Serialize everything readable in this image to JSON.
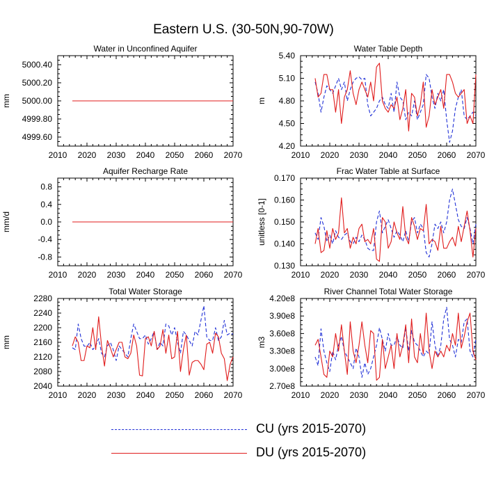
{
  "figure": {
    "title": "Eastern U.S. (30-50N,90-70W)",
    "colors": {
      "CU": "#1f2fd6",
      "DU": "#e01b1b"
    }
  },
  "legend": {
    "entries": [
      {
        "label": "CU (yrs 2015-2070)",
        "series": "CU",
        "style": "dashed"
      },
      {
        "label": "DU (yrs 2015-2070)",
        "series": "DU",
        "style": "solid"
      }
    ]
  },
  "chart_data": [
    {
      "type": "line",
      "title": "Water in Unconfined Aquifer",
      "ylabel": "mm",
      "xlim": [
        2010,
        2070
      ],
      "ylim": [
        4999.5,
        5000.5
      ],
      "xticks": [
        2010,
        2020,
        2030,
        2040,
        2050,
        2060,
        2070
      ],
      "yticks": [
        4999.6,
        4999.8,
        5000.0,
        5000.2,
        5000.4
      ],
      "ytick_labels": [
        "4999.60",
        "4999.80",
        "5000.00",
        "5000.20",
        "5000.40"
      ],
      "x_start": 2015,
      "series": [
        {
          "name": "CU (yrs 2015-2070)",
          "key": "CU",
          "style": "dashed",
          "values": [
            5000.0,
            5000.0,
            5000.0,
            5000.0,
            5000.0,
            5000.0,
            5000.0,
            5000.0,
            5000.0,
            5000.0,
            5000.0,
            5000.0,
            5000.0,
            5000.0,
            5000.0,
            5000.0,
            5000.0,
            5000.0,
            5000.0,
            5000.0,
            5000.0,
            5000.0,
            5000.0,
            5000.0,
            5000.0,
            5000.0,
            5000.0,
            5000.0,
            5000.0,
            5000.0,
            5000.0,
            5000.0,
            5000.0,
            5000.0,
            5000.0,
            5000.0,
            5000.0,
            5000.0,
            5000.0,
            5000.0,
            5000.0,
            5000.0,
            5000.0,
            5000.0,
            5000.0,
            5000.0,
            5000.0,
            5000.0,
            5000.0,
            5000.0,
            5000.0,
            5000.0,
            5000.0,
            5000.0,
            5000.0,
            5000.0
          ]
        },
        {
          "name": "DU (yrs 2015-2070)",
          "key": "DU",
          "style": "solid",
          "values": [
            5000.0,
            5000.0,
            5000.0,
            5000.0,
            5000.0,
            5000.0,
            5000.0,
            5000.0,
            5000.0,
            5000.0,
            5000.0,
            5000.0,
            5000.0,
            5000.0,
            5000.0,
            5000.0,
            5000.0,
            5000.0,
            5000.0,
            5000.0,
            5000.0,
            5000.0,
            5000.0,
            5000.0,
            5000.0,
            5000.0,
            5000.0,
            5000.0,
            5000.0,
            5000.0,
            5000.0,
            5000.0,
            5000.0,
            5000.0,
            5000.0,
            5000.0,
            5000.0,
            5000.0,
            5000.0,
            5000.0,
            5000.0,
            5000.0,
            5000.0,
            5000.0,
            5000.0,
            5000.0,
            5000.0,
            5000.0,
            5000.0,
            5000.0,
            5000.0,
            5000.0,
            5000.0,
            5000.0,
            5000.0,
            5000.0
          ]
        }
      ]
    },
    {
      "type": "line",
      "title": "Water Table Depth",
      "ylabel": "m",
      "xlim": [
        2010,
        2070
      ],
      "ylim": [
        4.2,
        5.4
      ],
      "xticks": [
        2010,
        2020,
        2030,
        2040,
        2050,
        2060,
        2070
      ],
      "yticks": [
        4.2,
        4.5,
        4.8,
        5.1,
        5.4
      ],
      "ytick_labels": [
        "4.20",
        "4.50",
        "4.80",
        "5.10",
        "5.40"
      ],
      "x_start": 2015,
      "series": [
        {
          "name": "CU (yrs 2015-2070)",
          "key": "CU",
          "style": "dashed",
          "values": [
            5.05,
            4.9,
            4.65,
            4.85,
            5.0,
            4.95,
            4.9,
            5.0,
            5.1,
            4.95,
            5.05,
            4.8,
            4.95,
            5.05,
            5.1,
            5.12,
            5.08,
            5.1,
            4.75,
            4.6,
            4.65,
            4.7,
            4.8,
            4.85,
            4.75,
            4.7,
            4.9,
            4.65,
            5.05,
            4.85,
            4.8,
            4.55,
            4.65,
            4.6,
            4.8,
            4.55,
            4.65,
            4.75,
            5.15,
            5.1,
            4.85,
            4.7,
            4.9,
            4.8,
            4.95,
            4.55,
            4.25,
            4.4,
            4.7,
            4.85,
            4.95,
            4.6,
            4.55,
            4.6,
            4.65,
            4.6
          ]
        },
        {
          "name": "DU (yrs 2015-2070)",
          "key": "DU",
          "style": "solid",
          "values": [
            5.1,
            4.85,
            4.9,
            5.15,
            5.15,
            4.95,
            4.95,
            4.65,
            4.95,
            4.5,
            4.85,
            4.95,
            5.2,
            4.9,
            4.75,
            4.95,
            5.05,
            4.95,
            4.85,
            5.05,
            4.8,
            5.25,
            5.3,
            4.8,
            4.7,
            4.65,
            4.75,
            4.7,
            4.85,
            4.55,
            4.7,
            4.95,
            4.4,
            4.9,
            4.85,
            4.6,
            4.75,
            5.05,
            4.45,
            4.6,
            4.95,
            4.75,
            4.85,
            4.95,
            4.7,
            5.15,
            5.15,
            5.05,
            4.9,
            4.85,
            4.9,
            4.95,
            4.5,
            4.6,
            4.5,
            5.15
          ]
        }
      ]
    },
    {
      "type": "line",
      "title": "Aquifer Recharge Rate",
      "ylabel": "mm/d",
      "xlim": [
        2010,
        2070
      ],
      "ylim": [
        -1.0,
        1.0
      ],
      "xticks": [
        2010,
        2020,
        2030,
        2040,
        2050,
        2060,
        2070
      ],
      "yticks": [
        -0.8,
        -0.4,
        0.0,
        0.4,
        0.8
      ],
      "ytick_labels": [
        "-0.8",
        "-0.4",
        "0.0",
        "0.4",
        "0.8"
      ],
      "x_start": 2015,
      "series": [
        {
          "name": "CU (yrs 2015-2070)",
          "key": "CU",
          "style": "dashed",
          "values": [
            0,
            0,
            0,
            0,
            0,
            0,
            0,
            0,
            0,
            0,
            0,
            0,
            0,
            0,
            0,
            0,
            0,
            0,
            0,
            0,
            0,
            0,
            0,
            0,
            0,
            0,
            0,
            0,
            0,
            0,
            0,
            0,
            0,
            0,
            0,
            0,
            0,
            0,
            0,
            0,
            0,
            0,
            0,
            0,
            0,
            0,
            0,
            0,
            0,
            0,
            0,
            0,
            0,
            0,
            0,
            0
          ]
        },
        {
          "name": "DU (yrs 2015-2070)",
          "key": "DU",
          "style": "solid",
          "values": [
            0,
            0,
            0,
            0,
            0,
            0,
            0,
            0,
            0,
            0,
            0,
            0,
            0,
            0,
            0,
            0,
            0,
            0,
            0,
            0,
            0,
            0,
            0,
            0,
            0,
            0,
            0,
            0,
            0,
            0,
            0,
            0,
            0,
            0,
            0,
            0,
            0,
            0,
            0,
            0,
            0,
            0,
            0,
            0,
            0,
            0,
            0,
            0,
            0,
            0,
            0,
            0,
            0,
            0,
            0,
            0
          ]
        }
      ]
    },
    {
      "type": "line",
      "title": "Frac Water Table at Surface",
      "ylabel": "unitless [0-1]",
      "xlim": [
        2010,
        2070
      ],
      "ylim": [
        0.13,
        0.17
      ],
      "xticks": [
        2010,
        2020,
        2030,
        2040,
        2050,
        2060,
        2070
      ],
      "yticks": [
        0.13,
        0.14,
        0.15,
        0.16,
        0.17
      ],
      "ytick_labels": [
        "0.130",
        "0.140",
        "0.150",
        "0.160",
        "0.170"
      ],
      "x_start": 2015,
      "series": [
        {
          "name": "CU (yrs 2015-2070)",
          "key": "CU",
          "style": "dashed",
          "values": [
            0.145,
            0.142,
            0.152,
            0.148,
            0.141,
            0.144,
            0.14,
            0.146,
            0.143,
            0.142,
            0.144,
            0.145,
            0.141,
            0.14,
            0.143,
            0.141,
            0.144,
            0.142,
            0.138,
            0.137,
            0.137,
            0.15,
            0.155,
            0.145,
            0.148,
            0.151,
            0.147,
            0.143,
            0.146,
            0.144,
            0.141,
            0.146,
            0.141,
            0.15,
            0.152,
            0.145,
            0.149,
            0.147,
            0.136,
            0.134,
            0.14,
            0.149,
            0.147,
            0.15,
            0.145,
            0.15,
            0.16,
            0.165,
            0.158,
            0.151,
            0.148,
            0.147,
            0.152,
            0.147,
            0.14,
            0.149
          ]
        },
        {
          "name": "DU (yrs 2015-2070)",
          "key": "DU",
          "style": "solid",
          "values": [
            0.14,
            0.147,
            0.136,
            0.137,
            0.146,
            0.138,
            0.147,
            0.142,
            0.145,
            0.161,
            0.145,
            0.147,
            0.138,
            0.143,
            0.14,
            0.147,
            0.149,
            0.141,
            0.142,
            0.14,
            0.147,
            0.133,
            0.132,
            0.152,
            0.15,
            0.138,
            0.141,
            0.15,
            0.145,
            0.142,
            0.157,
            0.143,
            0.14,
            0.152,
            0.148,
            0.142,
            0.147,
            0.146,
            0.158,
            0.14,
            0.142,
            0.141,
            0.137,
            0.148,
            0.138,
            0.138,
            0.141,
            0.143,
            0.139,
            0.148,
            0.141,
            0.148,
            0.155,
            0.146,
            0.134,
            0.147
          ]
        }
      ]
    },
    {
      "type": "line",
      "title": "Total Water Storage",
      "ylabel": "mm",
      "xlim": [
        2010,
        2070
      ],
      "ylim": [
        2040,
        2280
      ],
      "xticks": [
        2010,
        2020,
        2030,
        2040,
        2050,
        2060,
        2070
      ],
      "yticks": [
        2040,
        2080,
        2120,
        2160,
        2200,
        2240,
        2280
      ],
      "ytick_labels": [
        "2040",
        "2080",
        "2120",
        "2160",
        "2200",
        "2240",
        "2280"
      ],
      "x_start": 2015,
      "series": [
        {
          "name": "CU (yrs 2015-2070)",
          "key": "CU",
          "style": "dashed",
          "values": [
            2145,
            2140,
            2210,
            2170,
            2150,
            2148,
            2160,
            2140,
            2150,
            2170,
            2130,
            2120,
            2150,
            2160,
            2140,
            2110,
            2150,
            2140,
            2130,
            2120,
            2170,
            2210,
            2190,
            2170,
            2170,
            2180,
            2155,
            2170,
            2190,
            2140,
            2160,
            2150,
            2210,
            2205,
            2180,
            2200,
            2160,
            2130,
            2190,
            2180,
            2165,
            2150,
            2190,
            2180,
            2220,
            2260,
            2175,
            2165,
            2165,
            2200,
            2165,
            2175,
            2220,
            2180,
            2185,
            2182
          ]
        },
        {
          "name": "DU (yrs 2015-2070)",
          "key": "DU",
          "style": "solid",
          "values": [
            2150,
            2175,
            2160,
            2110,
            2110,
            2150,
            2145,
            2200,
            2140,
            2230,
            2150,
            2095,
            2165,
            2145,
            2120,
            2140,
            2160,
            2160,
            2120,
            2115,
            2130,
            2180,
            2150,
            2070,
            2068,
            2170,
            2175,
            2150,
            2190,
            2140,
            2150,
            2195,
            2130,
            2180,
            2115,
            2120,
            2190,
            2080,
            2140,
            2180,
            2070,
            2105,
            2110,
            2110,
            2100,
            2085,
            2155,
            2160,
            2130,
            2185,
            2175,
            2130,
            2115,
            2055,
            2100,
            2120
          ]
        }
      ]
    },
    {
      "type": "line",
      "title": "River Channel Total Water Storage",
      "ylabel": "m3",
      "xlim": [
        2010,
        2070
      ],
      "ylim": [
        270000000,
        420000000
      ],
      "xticks": [
        2010,
        2020,
        2030,
        2040,
        2050,
        2060,
        2070
      ],
      "yticks": [
        270000000,
        300000000,
        330000000,
        360000000,
        390000000,
        420000000
      ],
      "ytick_labels": [
        "2.70e8",
        "3.00e8",
        "3.30e8",
        "3.60e8",
        "3.90e8",
        "4.20e8"
      ],
      "x_start": 2015,
      "series": [
        {
          "name": "CU (yrs 2015-2070)",
          "key": "CU",
          "style": "dashed",
          "values": [
            320000000,
            305000000,
            368000000,
            330000000,
            310000000,
            295000000,
            330000000,
            315000000,
            340000000,
            355000000,
            330000000,
            320000000,
            310000000,
            300000000,
            335000000,
            320000000,
            285000000,
            310000000,
            290000000,
            300000000,
            320000000,
            340000000,
            370000000,
            350000000,
            330000000,
            360000000,
            340000000,
            340000000,
            355000000,
            340000000,
            335000000,
            370000000,
            330000000,
            365000000,
            345000000,
            340000000,
            330000000,
            320000000,
            330000000,
            325000000,
            380000000,
            340000000,
            320000000,
            340000000,
            385000000,
            405000000,
            350000000,
            340000000,
            320000000,
            350000000,
            345000000,
            380000000,
            385000000,
            330000000,
            320000000,
            350000000
          ]
        },
        {
          "name": "DU (yrs 2015-2070)",
          "key": "DU",
          "style": "solid",
          "values": [
            340000000,
            350000000,
            320000000,
            290000000,
            285000000,
            330000000,
            320000000,
            360000000,
            330000000,
            375000000,
            330000000,
            290000000,
            380000000,
            330000000,
            310000000,
            340000000,
            380000000,
            340000000,
            310000000,
            365000000,
            360000000,
            280000000,
            285000000,
            350000000,
            300000000,
            320000000,
            340000000,
            300000000,
            360000000,
            320000000,
            340000000,
            375000000,
            310000000,
            385000000,
            320000000,
            310000000,
            360000000,
            325000000,
            395000000,
            330000000,
            300000000,
            330000000,
            320000000,
            330000000,
            320000000,
            340000000,
            330000000,
            360000000,
            340000000,
            395000000,
            335000000,
            355000000,
            380000000,
            395000000,
            330000000,
            315000000
          ]
        }
      ]
    }
  ]
}
